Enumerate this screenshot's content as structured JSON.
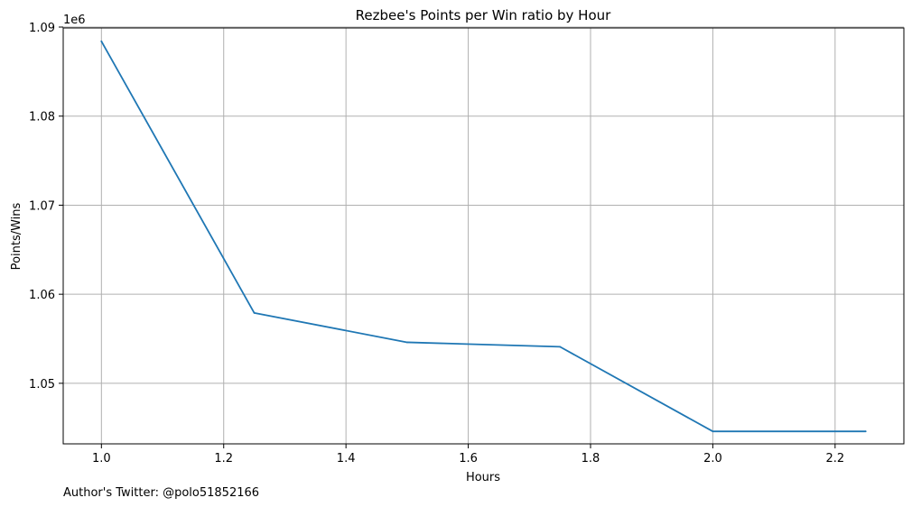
{
  "chart_data": {
    "type": "line",
    "title": "Rezbee's Points per Win ratio by Hour",
    "xlabel": "Hours",
    "ylabel": "Points/Wins",
    "y_offset_label": "1e6",
    "x": [
      1.0,
      1.25,
      1.5,
      1.75,
      2.0,
      2.25
    ],
    "series": [
      {
        "values": [
          1.0884,
          1.0579,
          1.0546,
          1.0541,
          1.0446,
          1.0446
        ],
        "color": "#1f77b4"
      }
    ],
    "xlim": [
      0.9375,
      2.3125
    ],
    "ylim": [
      1.0432,
      1.0899
    ],
    "x_ticks": [
      {
        "value": 1.0,
        "label": "1.0"
      },
      {
        "value": 1.2,
        "label": "1.2"
      },
      {
        "value": 1.4,
        "label": "1.4"
      },
      {
        "value": 1.6,
        "label": "1.6"
      },
      {
        "value": 1.8,
        "label": "1.8"
      },
      {
        "value": 2.0,
        "label": "2.0"
      },
      {
        "value": 2.2,
        "label": "2.2"
      }
    ],
    "y_ticks": [
      {
        "value": 1.05,
        "label": "1.05"
      },
      {
        "value": 1.06,
        "label": "1.06"
      },
      {
        "value": 1.07,
        "label": "1.07"
      },
      {
        "value": 1.08,
        "label": "1.08"
      },
      {
        "value": 1.09,
        "label": "1.09"
      }
    ],
    "grid": true,
    "grid_color": "#b0b0b0",
    "annotation": "Author's Twitter: @polo51852166"
  }
}
